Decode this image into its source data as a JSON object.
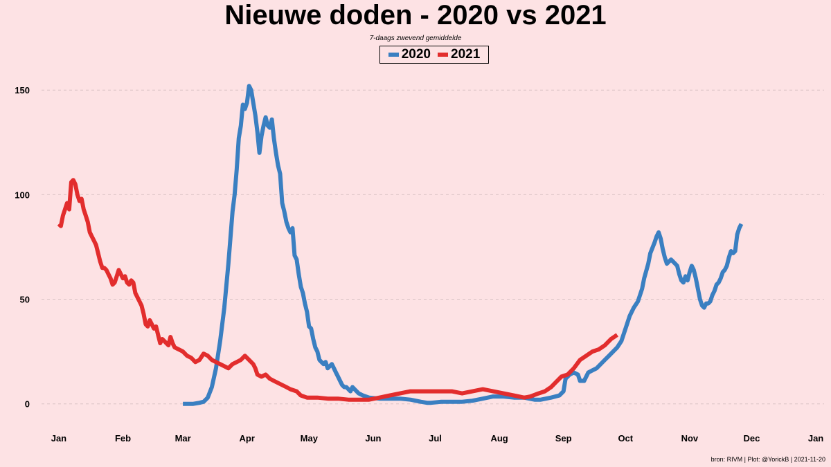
{
  "colors": {
    "background": "#fde2e4",
    "grid": "#d9c2c4",
    "s2020": "#3a7fc1",
    "s2021": "#e22d2d"
  },
  "source_text": "bron: RIVM  | Plot: @YorickB |  2021-11-20",
  "chart_data": {
    "type": "line",
    "title": "Nieuwe doden - 2020 vs 2021",
    "subtitle": "7-daags zwevend gemiddelde",
    "xlabel": "",
    "ylabel": "",
    "x_unit": "day-of-year",
    "xlim": [
      -5,
      370
    ],
    "ylim": [
      -12,
      160
    ],
    "yticks": [
      0,
      50,
      100,
      150
    ],
    "ytick_labels": [
      "0",
      "50",
      "100",
      "150"
    ],
    "xticks": [
      0,
      31,
      60,
      91,
      121,
      152,
      182,
      213,
      244,
      274,
      305,
      335,
      366
    ],
    "xtick_labels": [
      "Jan",
      "Feb",
      "Mar",
      "Apr",
      "May",
      "Jun",
      "Jul",
      "Aug",
      "Sep",
      "Oct",
      "Nov",
      "Dec",
      "Jan"
    ],
    "grid": "horizontal-dashed",
    "legend_position": "top-center",
    "series": [
      {
        "name": "2020",
        "color": "#3a7fc1",
        "points": [
          [
            60,
            0
          ],
          [
            65,
            0
          ],
          [
            68,
            0.5
          ],
          [
            70,
            1
          ],
          [
            72,
            3
          ],
          [
            74,
            8
          ],
          [
            76,
            17
          ],
          [
            78,
            30
          ],
          [
            80,
            46
          ],
          [
            82,
            67
          ],
          [
            84,
            92
          ],
          [
            85,
            100
          ],
          [
            86,
            112
          ],
          [
            87,
            127
          ],
          [
            88,
            133
          ],
          [
            89,
            143
          ],
          [
            90,
            141
          ],
          [
            91,
            144
          ],
          [
            92,
            152
          ],
          [
            93,
            150
          ],
          [
            94,
            144
          ],
          [
            95,
            138
          ],
          [
            96,
            130
          ],
          [
            97,
            120
          ],
          [
            98,
            128
          ],
          [
            99,
            133
          ],
          [
            100,
            137
          ],
          [
            101,
            133
          ],
          [
            102,
            132
          ],
          [
            103,
            136
          ],
          [
            104,
            127
          ],
          [
            105,
            120
          ],
          [
            106,
            114
          ],
          [
            107,
            110
          ],
          [
            108,
            96
          ],
          [
            109,
            92
          ],
          [
            110,
            87
          ],
          [
            111,
            84
          ],
          [
            112,
            82
          ],
          [
            113,
            84
          ],
          [
            114,
            71
          ],
          [
            115,
            69
          ],
          [
            116,
            62
          ],
          [
            117,
            56
          ],
          [
            118,
            53
          ],
          [
            119,
            48
          ],
          [
            120,
            44
          ],
          [
            121,
            37
          ],
          [
            122,
            36
          ],
          [
            123,
            31
          ],
          [
            124,
            27
          ],
          [
            125,
            25
          ],
          [
            126,
            21
          ],
          [
            127,
            20
          ],
          [
            128,
            19
          ],
          [
            129,
            20
          ],
          [
            130,
            17
          ],
          [
            131,
            18
          ],
          [
            132,
            19
          ],
          [
            133,
            17
          ],
          [
            134,
            15
          ],
          [
            135,
            13
          ],
          [
            136,
            11
          ],
          [
            137,
            9
          ],
          [
            138,
            8
          ],
          [
            139,
            8
          ],
          [
            140,
            7
          ],
          [
            141,
            6
          ],
          [
            142,
            8
          ],
          [
            143,
            7
          ],
          [
            145,
            5
          ],
          [
            147,
            4
          ],
          [
            150,
            3
          ],
          [
            155,
            2.5
          ],
          [
            160,
            2.5
          ],
          [
            165,
            2.5
          ],
          [
            170,
            2
          ],
          [
            175,
            1
          ],
          [
            178,
            0.5
          ],
          [
            180,
            0.5
          ],
          [
            185,
            1
          ],
          [
            190,
            1
          ],
          [
            195,
            1
          ],
          [
            200,
            1.5
          ],
          [
            205,
            2.5
          ],
          [
            210,
            3.5
          ],
          [
            215,
            3.5
          ],
          [
            220,
            3
          ],
          [
            225,
            3
          ],
          [
            230,
            2
          ],
          [
            233,
            2
          ],
          [
            238,
            3
          ],
          [
            242,
            4
          ],
          [
            244,
            6
          ],
          [
            245,
            12
          ],
          [
            247,
            14
          ],
          [
            249,
            15
          ],
          [
            251,
            14
          ],
          [
            252,
            11
          ],
          [
            254,
            11
          ],
          [
            256,
            15
          ],
          [
            258,
            16
          ],
          [
            260,
            17
          ],
          [
            262,
            19
          ],
          [
            264,
            21
          ],
          [
            266,
            23
          ],
          [
            268,
            25
          ],
          [
            270,
            27
          ],
          [
            272,
            30
          ],
          [
            274,
            36
          ],
          [
            276,
            42
          ],
          [
            278,
            46
          ],
          [
            280,
            49
          ],
          [
            282,
            55
          ],
          [
            283,
            60
          ],
          [
            285,
            67
          ],
          [
            286,
            72
          ],
          [
            288,
            77
          ],
          [
            289,
            80
          ],
          [
            290,
            82
          ],
          [
            291,
            79
          ],
          [
            292,
            74
          ],
          [
            293,
            70
          ],
          [
            294,
            67
          ],
          [
            295,
            68
          ],
          [
            296,
            69
          ],
          [
            297,
            68
          ],
          [
            298,
            67
          ],
          [
            299,
            66
          ],
          [
            300,
            62
          ],
          [
            301,
            59
          ],
          [
            302,
            58
          ],
          [
            303,
            61
          ],
          [
            304,
            59
          ],
          [
            305,
            63
          ],
          [
            306,
            66
          ],
          [
            307,
            64
          ],
          [
            308,
            60
          ],
          [
            309,
            55
          ],
          [
            310,
            50
          ],
          [
            311,
            47
          ],
          [
            312,
            46
          ],
          [
            313,
            48
          ],
          [
            314,
            48
          ],
          [
            315,
            49
          ],
          [
            316,
            52
          ],
          [
            317,
            54
          ],
          [
            318,
            57
          ],
          [
            319,
            58
          ],
          [
            320,
            60
          ],
          [
            321,
            63
          ],
          [
            322,
            64
          ],
          [
            323,
            66
          ],
          [
            324,
            70
          ],
          [
            325,
            73
          ],
          [
            326,
            72
          ],
          [
            327,
            73
          ],
          [
            328,
            81
          ],
          [
            329,
            84
          ],
          [
            330,
            86
          ]
        ]
      },
      {
        "name": "2021",
        "color": "#e22d2d",
        "points": [
          [
            0,
            86
          ],
          [
            1,
            85
          ],
          [
            2,
            90
          ],
          [
            3,
            93
          ],
          [
            4,
            96
          ],
          [
            5,
            93
          ],
          [
            6,
            106
          ],
          [
            7,
            107
          ],
          [
            8,
            105
          ],
          [
            9,
            100
          ],
          [
            10,
            97
          ],
          [
            11,
            98
          ],
          [
            12,
            93
          ],
          [
            13,
            90
          ],
          [
            14,
            87
          ],
          [
            15,
            82
          ],
          [
            16,
            80
          ],
          [
            17,
            78
          ],
          [
            18,
            76
          ],
          [
            19,
            72
          ],
          [
            20,
            68
          ],
          [
            21,
            65
          ],
          [
            22,
            65
          ],
          [
            23,
            64
          ],
          [
            24,
            62
          ],
          [
            25,
            60
          ],
          [
            26,
            57
          ],
          [
            27,
            58
          ],
          [
            28,
            61
          ],
          [
            29,
            64
          ],
          [
            30,
            62
          ],
          [
            31,
            60
          ],
          [
            32,
            61
          ],
          [
            33,
            58
          ],
          [
            34,
            57
          ],
          [
            35,
            59
          ],
          [
            36,
            58
          ],
          [
            37,
            53
          ],
          [
            38,
            51
          ],
          [
            39,
            49
          ],
          [
            40,
            47
          ],
          [
            41,
            43
          ],
          [
            42,
            38
          ],
          [
            43,
            37
          ],
          [
            44,
            40
          ],
          [
            45,
            38
          ],
          [
            46,
            36
          ],
          [
            47,
            37
          ],
          [
            48,
            33
          ],
          [
            49,
            29
          ],
          [
            50,
            31
          ],
          [
            51,
            30
          ],
          [
            52,
            29
          ],
          [
            53,
            28
          ],
          [
            54,
            32
          ],
          [
            55,
            29
          ],
          [
            56,
            27
          ],
          [
            58,
            26
          ],
          [
            60,
            25
          ],
          [
            62,
            23
          ],
          [
            64,
            22
          ],
          [
            66,
            20
          ],
          [
            68,
            21
          ],
          [
            70,
            24
          ],
          [
            72,
            23
          ],
          [
            74,
            21
          ],
          [
            76,
            20
          ],
          [
            78,
            19
          ],
          [
            80,
            18
          ],
          [
            82,
            17
          ],
          [
            84,
            19
          ],
          [
            86,
            20
          ],
          [
            88,
            21
          ],
          [
            90,
            23
          ],
          [
            92,
            21
          ],
          [
            94,
            19
          ],
          [
            95,
            17
          ],
          [
            96,
            14
          ],
          [
            98,
            13
          ],
          [
            100,
            14
          ],
          [
            102,
            12
          ],
          [
            104,
            11
          ],
          [
            106,
            10
          ],
          [
            108,
            9
          ],
          [
            110,
            8
          ],
          [
            112,
            7
          ],
          [
            115,
            6
          ],
          [
            117,
            4
          ],
          [
            120,
            3
          ],
          [
            125,
            3
          ],
          [
            130,
            2.5
          ],
          [
            135,
            2.5
          ],
          [
            140,
            2
          ],
          [
            145,
            2
          ],
          [
            150,
            2
          ],
          [
            155,
            3
          ],
          [
            160,
            4
          ],
          [
            165,
            5
          ],
          [
            170,
            6
          ],
          [
            175,
            6
          ],
          [
            180,
            6
          ],
          [
            185,
            6
          ],
          [
            190,
            6
          ],
          [
            195,
            5
          ],
          [
            200,
            6
          ],
          [
            205,
            7
          ],
          [
            210,
            6
          ],
          [
            215,
            5
          ],
          [
            220,
            4
          ],
          [
            225,
            3
          ],
          [
            228,
            3.5
          ],
          [
            232,
            5
          ],
          [
            235,
            6
          ],
          [
            238,
            8
          ],
          [
            240,
            10
          ],
          [
            243,
            13
          ],
          [
            246,
            14
          ],
          [
            249,
            17
          ],
          [
            252,
            21
          ],
          [
            255,
            23
          ],
          [
            258,
            25
          ],
          [
            261,
            26
          ],
          [
            264,
            28
          ],
          [
            267,
            31
          ],
          [
            270,
            33
          ]
        ]
      }
    ]
  }
}
